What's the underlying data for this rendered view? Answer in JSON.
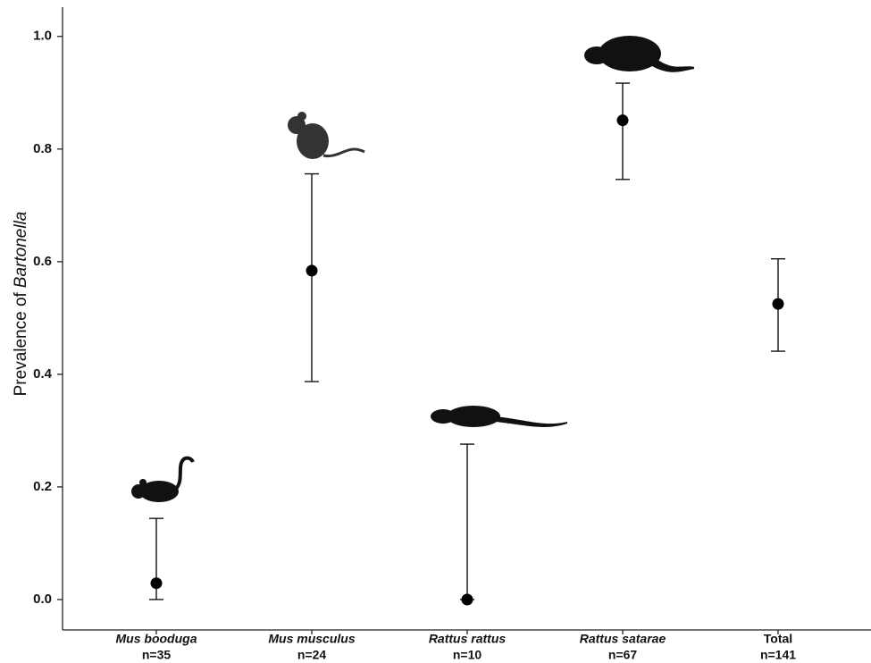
{
  "chart_data": {
    "type": "errorbar",
    "ylabel": "Prevalence of",
    "ylabel_italic": "Bartonella",
    "categories": [
      "Mus booduga",
      "Mus musculus",
      "Rattus rattus",
      "Rattus satarae",
      "Total"
    ],
    "n_labels": [
      "n=35",
      "n=24",
      "n=10",
      "n=67",
      "n=141"
    ],
    "values": [
      0.029,
      0.584,
      0,
      0.851,
      0.525
    ],
    "lower": [
      0,
      0.387,
      0,
      0.746,
      0.441
    ],
    "upper": [
      0.144,
      0.756,
      0.276,
      0.917,
      0.605
    ],
    "color": "#000000",
    "ylim": [
      -0.054,
      1.052
    ],
    "yticks": [
      {
        "value": 0,
        "label": "0.0"
      },
      0.2,
      0.4,
      0.6,
      0.8,
      {
        "value": 1,
        "label": "1.0"
      }
    ]
  }
}
